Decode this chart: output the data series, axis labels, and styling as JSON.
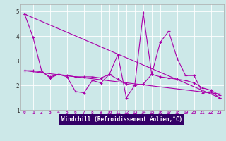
{
  "xlabel": "Windchill (Refroidissement éolien,°C)",
  "xlim": [
    -0.5,
    23.5
  ],
  "ylim": [
    1.0,
    5.3
  ],
  "yticks": [
    1,
    2,
    3,
    4,
    5
  ],
  "xticks": [
    0,
    1,
    2,
    3,
    4,
    5,
    6,
    7,
    8,
    9,
    10,
    11,
    12,
    13,
    14,
    15,
    16,
    17,
    18,
    19,
    20,
    21,
    22,
    23
  ],
  "background_color": "#cce8e8",
  "plot_bg": "#cce8e8",
  "line_color": "#aa00aa",
  "xlabel_bg": "#330066",
  "xlabel_fg": "#ffffff",
  "line1_x": [
    0,
    1,
    2,
    3,
    4,
    5,
    6,
    7,
    8,
    9,
    10,
    11,
    12,
    13,
    14,
    15,
    16,
    17,
    18,
    19,
    20,
    21,
    22,
    23
  ],
  "line1_y": [
    4.9,
    3.95,
    2.6,
    2.3,
    2.45,
    2.35,
    1.75,
    1.7,
    2.2,
    2.1,
    2.45,
    3.25,
    1.5,
    2.0,
    4.95,
    2.45,
    3.75,
    4.2,
    3.1,
    2.4,
    2.4,
    1.7,
    1.75,
    1.5
  ],
  "line2_x": [
    0,
    1,
    2,
    3,
    4,
    5,
    6,
    7,
    8,
    9,
    10,
    11,
    12,
    13,
    14,
    15,
    16,
    17,
    18,
    19,
    20,
    21,
    22,
    23
  ],
  "line2_y": [
    2.6,
    2.6,
    2.55,
    2.35,
    2.45,
    2.4,
    2.35,
    2.35,
    2.35,
    2.3,
    2.45,
    2.25,
    2.05,
    2.0,
    2.05,
    2.45,
    2.35,
    2.3,
    2.25,
    2.2,
    2.1,
    1.9,
    1.8,
    1.6
  ],
  "line3_x": [
    0,
    23
  ],
  "line3_y": [
    4.9,
    1.5
  ],
  "line4_x": [
    0,
    23
  ],
  "line4_y": [
    2.6,
    1.65
  ]
}
